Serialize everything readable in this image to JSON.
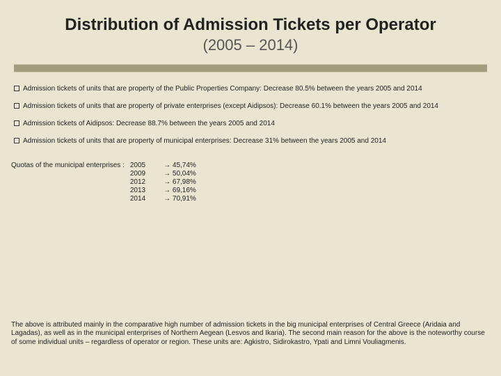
{
  "title": {
    "main": "Distribution of Admission Tickets per Operator",
    "sub": "(2005 – 2014)"
  },
  "bullets": [
    "Admission tickets of units that are property of the Public Properties Company: Decrease 80.5% between the years 2005 and 2014",
    "Admission tickets of units that are property of private enterprises (except Aidipsos): Decrease 60.1% between the years 2005 and 2014",
    "Admission tickets of Aidipsos: Decrease 88.7% between the years 2005 and 2014",
    "Admission tickets of units that are property of municipal enterprises: Decrease 31% between the years 2005 and 2014"
  ],
  "quotas": {
    "label": "Quotas of the municipal enterprises :",
    "rows": [
      {
        "year": "2005",
        "value": "→ 45,74%"
      },
      {
        "year": "2009",
        "value": "→ 50,04%"
      },
      {
        "year": "2012",
        "value": "→ 67,98%"
      },
      {
        "year": "2013",
        "value": "→ 69,16%"
      },
      {
        "year": "2014",
        "value": "→ 70,91%"
      }
    ]
  },
  "footer": "The above is attributed mainly in the comparative high number of admission tickets in the big municipal enterprises of Central Greece (Aridaia and Lagadas), as well as in the municipal enterprises of Northern Aegean (Lesvos and Ikaria). The second main reason for the above is the noteworthy course of some individual units – regardless of operator or region. These units are: Agkistro, Sidirokastro, Ypati and Limni Vouliagmenis.",
  "colors": {
    "background": "#e9e5d1",
    "divider": "#a19d7c",
    "text": "#222222"
  }
}
